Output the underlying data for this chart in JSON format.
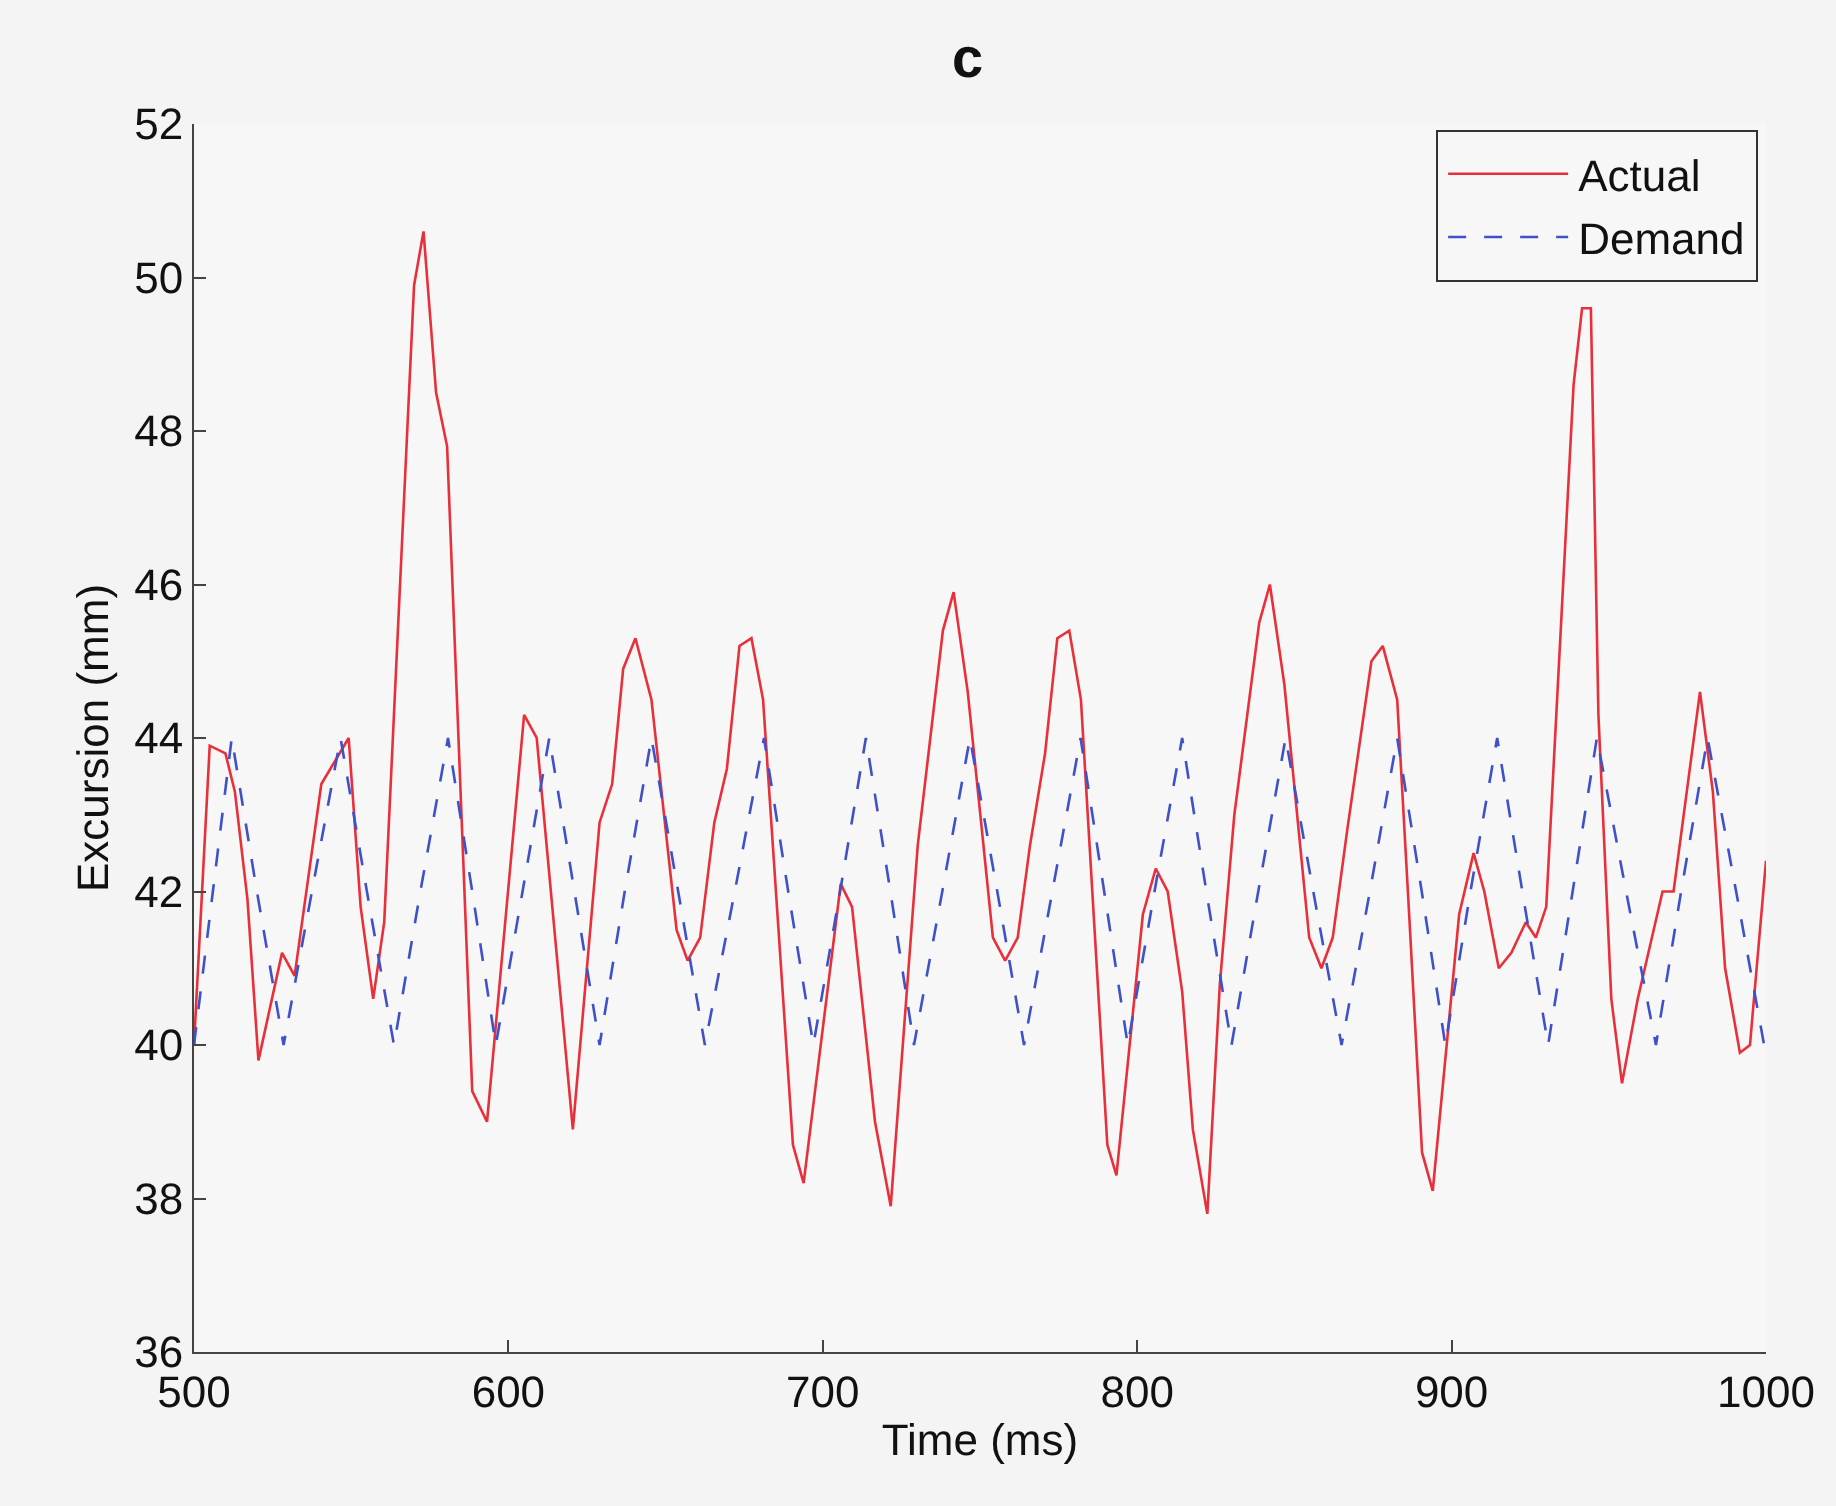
{
  "chart_data": {
    "type": "line",
    "title": "c",
    "xlabel": "Time (ms)",
    "ylabel": "Excursion (mm)",
    "xlim": [
      500,
      1000
    ],
    "xticks": [
      500,
      600,
      700,
      800,
      900,
      1000
    ],
    "ylim": [
      36,
      52
    ],
    "yticks": [
      36,
      38,
      40,
      42,
      44,
      46,
      48,
      50,
      52
    ],
    "grid": false,
    "legend": "top right",
    "marker": "none",
    "series": [
      {
        "name": "Actual",
        "color": "#e8303a",
        "line_style": "solid",
        "x": [
          500,
          505,
          510,
          513,
          517,
          520.5,
          528,
          532,
          540.5,
          549.2,
          553,
          557,
          560.5,
          570,
          573,
          577,
          580.5,
          588.5,
          593.2,
          605,
          609,
          620.5,
          629,
          633,
          636.5,
          640.4,
          645.5,
          653.5,
          657,
          661,
          665.5,
          669.5,
          673.5,
          677.3,
          681,
          690.5,
          693.9,
          705.7,
          709.3,
          716.6,
          721.6,
          730.2,
          738.2,
          741.6,
          746.1,
          754.1,
          758,
          762,
          765.9,
          770.7,
          774.6,
          778.4,
          782.1,
          790.5,
          793.4,
          801.8,
          805.9,
          809.7,
          814.3,
          817.7,
          822.3,
          826.3,
          830.9,
          838.8,
          842.2,
          846.8,
          854.7,
          858.6,
          862.2,
          866.8,
          874.5,
          878.1,
          882.7,
          886.5,
          890.6,
          894,
          902.4,
          907,
          910.4,
          915,
          919,
          923.6,
          926.8,
          930.1,
          938.8,
          941.5,
          944.3,
          946.7,
          950.8,
          954.2,
          959.2,
          967.1,
          970.6,
          979,
          983.1,
          987,
          991.7,
          994.9,
          1000
        ],
        "values": [
          40.0,
          43.9,
          43.8,
          43.3,
          41.9,
          39.8,
          41.2,
          40.9,
          43.4,
          44.0,
          41.8,
          40.6,
          41.6,
          49.9,
          50.6,
          48.5,
          47.8,
          39.4,
          39.0,
          44.3,
          44.0,
          38.9,
          42.9,
          43.4,
          44.9,
          45.3,
          44.5,
          41.5,
          41.1,
          41.4,
          42.9,
          43.6,
          45.2,
          45.3,
          44.5,
          38.7,
          38.2,
          42.1,
          41.8,
          39.0,
          37.9,
          42.6,
          45.4,
          45.9,
          44.6,
          41.4,
          41.1,
          41.4,
          42.6,
          43.8,
          45.3,
          45.4,
          44.5,
          38.7,
          38.3,
          41.7,
          42.3,
          42.0,
          40.7,
          38.9,
          37.8,
          40.8,
          43.0,
          45.5,
          46.0,
          44.7,
          41.4,
          41.0,
          41.4,
          42.8,
          45.0,
          45.2,
          44.5,
          41.7,
          38.6,
          38.1,
          41.7,
          42.5,
          42.0,
          41.0,
          41.2,
          41.6,
          41.4,
          41.8,
          48.6,
          49.6,
          49.6,
          44.3,
          40.6,
          39.5,
          40.6,
          42.0,
          42.0,
          44.6,
          43.3,
          41.0,
          39.9,
          40.0,
          42.4
        ]
      },
      {
        "name": "Demand",
        "color": "#3f51c8",
        "line_style": "dashed",
        "x": [
          500,
          506,
          512,
          520,
          528.5,
          537.5,
          546.6,
          555,
          563.6,
          572,
          580.8,
          588.5,
          596,
          604.5,
          613,
          621,
          629,
          637,
          645.5,
          654,
          662.5,
          672,
          681.3,
          689,
          697,
          705.5,
          713.7,
          721.5,
          729,
          738,
          746.8,
          755.5,
          764,
          773,
          782,
          789.5,
          797,
          805.5,
          814.3,
          822,
          830,
          838.5,
          847.2,
          856,
          865,
          874,
          882.7,
          890.5,
          898,
          906,
          914.5,
          922.5,
          930.7,
          938.5,
          946.2,
          955.5,
          965,
          973,
          981.4,
          990.5,
          999.4
        ],
        "values": [
          40.0,
          42.0,
          44.0,
          42.0,
          40.0,
          42.0,
          44.0,
          42.0,
          40.0,
          42.0,
          44.0,
          42.0,
          40.0,
          42.0,
          44.0,
          42.0,
          40.0,
          42.0,
          44.0,
          42.0,
          40.0,
          42.0,
          44.0,
          42.0,
          40.0,
          42.0,
          44.0,
          42.0,
          40.0,
          42.0,
          44.0,
          42.0,
          40.0,
          42.0,
          44.0,
          42.0,
          40.0,
          42.0,
          44.0,
          42.0,
          40.0,
          42.0,
          44.0,
          42.0,
          40.0,
          42.0,
          44.0,
          42.0,
          40.0,
          42.0,
          44.0,
          42.0,
          40.0,
          42.0,
          44.0,
          42.0,
          40.0,
          42.0,
          44.0,
          42.0,
          40.0
        ]
      }
    ]
  }
}
